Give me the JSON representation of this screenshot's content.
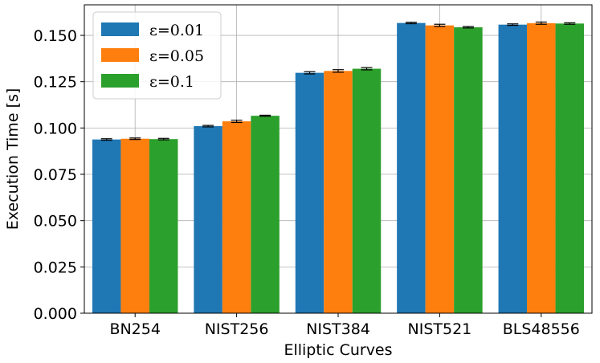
{
  "chart_data": {
    "type": "bar",
    "title": "",
    "xlabel": "Elliptic Curves",
    "ylabel": "Execution Time [s]",
    "categories": [
      "BN254",
      "NIST256",
      "NIST384",
      "NIST521",
      "BLS48556"
    ],
    "series": [
      {
        "name": "ε=0.01",
        "color": "#1f77b4",
        "values": [
          0.0938,
          0.101,
          0.1298,
          0.1567,
          0.1558
        ],
        "errors": [
          0.0004,
          0.0004,
          0.0006,
          0.0004,
          0.0004
        ]
      },
      {
        "name": "ε=0.05",
        "color": "#ff7f0e",
        "values": [
          0.0942,
          0.1036,
          0.1308,
          0.1554,
          0.1566
        ],
        "errors": [
          0.0004,
          0.0006,
          0.0007,
          0.0006,
          0.0006
        ]
      },
      {
        "name": "ε=0.1",
        "color": "#2ca02c",
        "values": [
          0.094,
          0.1066,
          0.132,
          0.1544,
          0.1564
        ],
        "errors": [
          0.0004,
          0.0003,
          0.0006,
          0.0004,
          0.0004
        ]
      }
    ],
    "yticks": [
      "0.000",
      "0.025",
      "0.050",
      "0.075",
      "0.100",
      "0.125",
      "0.150"
    ],
    "ylim": [
      0,
      0.1665
    ],
    "grid": true,
    "legend_position": "top-left"
  }
}
